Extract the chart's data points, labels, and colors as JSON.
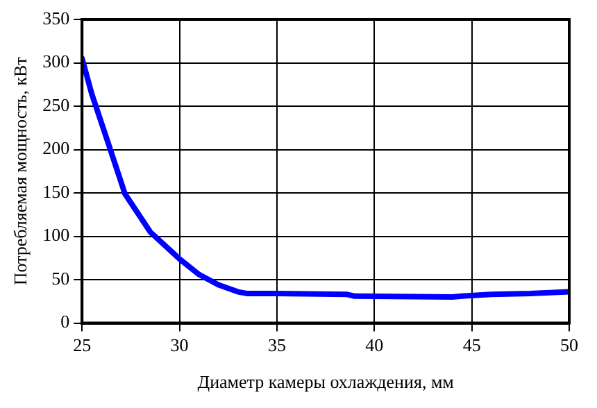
{
  "chart_data": {
    "type": "line",
    "xlabel": "Диаметр камеры охлаждения, мм",
    "ylabel": "Потребляемая мощность, кВт",
    "series": [
      {
        "color": "#0000ff",
        "x": [
          25,
          25.5,
          26.2,
          27.2,
          28.5,
          30,
          31,
          32,
          33,
          33.5,
          35,
          38.6,
          39,
          44,
          44.5,
          46,
          48,
          50
        ],
        "values": [
          305,
          264,
          217,
          149,
          105,
          74,
          56,
          44,
          36,
          34,
          34,
          33,
          31,
          30,
          31,
          33,
          34,
          36
        ]
      }
    ],
    "xlim": [
      25,
      50
    ],
    "xticks": [
      25,
      30,
      35,
      40,
      45,
      50
    ],
    "ylim": [
      0,
      350
    ],
    "yticks": [
      0,
      50,
      100,
      150,
      200,
      250,
      300,
      350
    ],
    "grid": true,
    "legend": false,
    "marker": "none",
    "line_style": "solid"
  }
}
